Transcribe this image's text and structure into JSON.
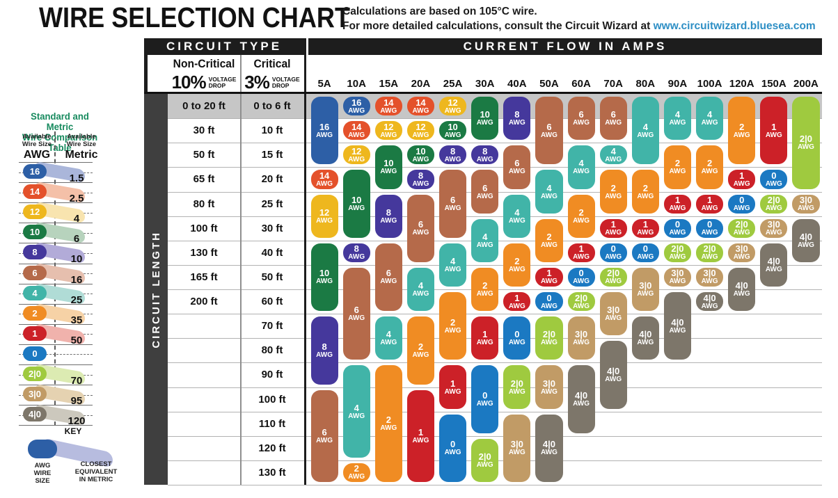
{
  "title": "WIRE SELECTION CHART",
  "subtitle": {
    "line1": "Calculations are based on 105°C wire.",
    "line2_prefix": "For more detailed calculations, consult the Circuit Wizard at ",
    "link": "www.circuitwizard.bluesea.com"
  },
  "sidebar": {
    "title": "Standard and Metric\nWire Comparison Table",
    "left_header_small": "Available\nWire Size",
    "left_header_big": "AWG",
    "right_header_small": "Available\nWire Size",
    "right_header_big": "Metric",
    "rows": [
      {
        "awg": "16",
        "metric": "1.5"
      },
      {
        "awg": "14",
        "metric": "2.5"
      },
      {
        "awg": "12",
        "metric": "4"
      },
      {
        "awg": "10",
        "metric": "6"
      },
      {
        "awg": "8",
        "metric": "10"
      },
      {
        "awg": "6",
        "metric": "16"
      },
      {
        "awg": "4",
        "metric": "25"
      },
      {
        "awg": "2",
        "metric": "35"
      },
      {
        "awg": "1",
        "metric": "50"
      },
      {
        "awg": "0",
        "metric": ""
      },
      {
        "awg": "2|0",
        "metric": "70"
      },
      {
        "awg": "3|0",
        "metric": "95"
      },
      {
        "awg": "4|0",
        "metric": "120"
      }
    ],
    "key": {
      "title": "KEY",
      "left_label": "AWG\nWIRE\nSIZE",
      "right_label": "CLOSEST\nEQUIVALENT\nIN METRIC"
    }
  },
  "table": {
    "circuit_type_header": "CIRCUIT TYPE",
    "current_flow_header": "CURRENT FLOW IN AMPS",
    "circuit_length_label": "CIRCUIT LENGTH",
    "non_critical": {
      "title": "Non-Critical",
      "pct": "10%",
      "sub": "VOLTAGE\nDROP"
    },
    "critical": {
      "title": "Critical",
      "pct": "3%",
      "sub": "VOLTAGE\nDROP"
    },
    "awg_suffix": "AWG"
  },
  "wire_colors": {
    "16": "#2d5fa6",
    "14": "#e4512b",
    "12": "#eeb71e",
    "10": "#1b7a44",
    "8": "#45389c",
    "6": "#b56a4a",
    "4": "#41b4a8",
    "2": "#f08c23",
    "1": "#cc2128",
    "0": "#1b79c2",
    "2|0": "#9fca3f",
    "3|0": "#c19b66",
    "4|0": "#7d766a"
  },
  "wire_colors_light": {
    "16": "#aab6da",
    "14": "#f4c0a8",
    "12": "#f8e4af",
    "10": "#b7d3bd",
    "8": "#b2abd8",
    "6": "#e6bfae",
    "4": "#b0dcd6",
    "2": "#f6d2a6",
    "1": "#f0b2ac",
    "0": "#a9cbe8",
    "2|0": "#dcebb2",
    "3|0": "#e5d2b1",
    "4|0": "#ccc8bd"
  },
  "key_band_color": "#b7bcdf",
  "chart_data": {
    "type": "table",
    "title": "WIRE SELECTION CHART",
    "x_axis_label": "CURRENT FLOW IN AMPS",
    "y_axis_label": "CIRCUIT LENGTH",
    "amp_columns": [
      "5A",
      "10A",
      "15A",
      "20A",
      "25A",
      "30A",
      "40A",
      "50A",
      "60A",
      "70A",
      "80A",
      "90A",
      "100A",
      "120A",
      "150A",
      "200A"
    ],
    "non_critical_lengths": [
      "0 to 20 ft",
      "30 ft",
      "50 ft",
      "65 ft",
      "80 ft",
      "100 ft",
      "130 ft",
      "165 ft",
      "200 ft"
    ],
    "critical_lengths": [
      "0 to 6 ft",
      "10 ft",
      "15 ft",
      "20 ft",
      "25 ft",
      "30 ft",
      "40 ft",
      "50 ft",
      "60 ft",
      "70 ft",
      "80 ft",
      "90 ft",
      "100 ft",
      "110 ft",
      "120 ft",
      "130 ft"
    ],
    "pills": [
      {
        "amp": "5A",
        "segments": [
          {
            "awg": "16",
            "from": 1,
            "to": 3
          },
          {
            "awg": "14",
            "from": 4,
            "to": 4
          },
          {
            "awg": "12",
            "from": 5,
            "to": 6
          },
          {
            "awg": "10",
            "from": 7,
            "to": 9
          },
          {
            "awg": "8",
            "from": 10,
            "to": 12
          },
          {
            "awg": "6",
            "from": 13,
            "to": 16
          }
        ]
      },
      {
        "amp": "10A",
        "segments": [
          {
            "awg": "16",
            "from": 1,
            "to": 1
          },
          {
            "awg": "14",
            "from": 2,
            "to": 2
          },
          {
            "awg": "12",
            "from": 3,
            "to": 3
          },
          {
            "awg": "10",
            "from": 4,
            "to": 6
          },
          {
            "awg": "8",
            "from": 7,
            "to": 7
          },
          {
            "awg": "6",
            "from": 8,
            "to": 11
          },
          {
            "awg": "4",
            "from": 12,
            "to": 15
          },
          {
            "awg": "2",
            "from": 16,
            "to": 16
          }
        ]
      },
      {
        "amp": "15A",
        "segments": [
          {
            "awg": "14",
            "from": 1,
            "to": 1
          },
          {
            "awg": "12",
            "from": 2,
            "to": 2
          },
          {
            "awg": "10",
            "from": 3,
            "to": 4
          },
          {
            "awg": "8",
            "from": 5,
            "to": 6
          },
          {
            "awg": "6",
            "from": 7,
            "to": 9
          },
          {
            "awg": "4",
            "from": 10,
            "to": 11
          },
          {
            "awg": "2",
            "from": 12,
            "to": 16
          }
        ]
      },
      {
        "amp": "20A",
        "segments": [
          {
            "awg": "14",
            "from": 1,
            "to": 1
          },
          {
            "awg": "12",
            "from": 2,
            "to": 2
          },
          {
            "awg": "10",
            "from": 3,
            "to": 3
          },
          {
            "awg": "8",
            "from": 4,
            "to": 4
          },
          {
            "awg": "6",
            "from": 5,
            "to": 7
          },
          {
            "awg": "4",
            "from": 8,
            "to": 9
          },
          {
            "awg": "2",
            "from": 10,
            "to": 12
          },
          {
            "awg": "1",
            "from": 13,
            "to": 16
          }
        ]
      },
      {
        "amp": "25A",
        "segments": [
          {
            "awg": "12",
            "from": 1,
            "to": 1
          },
          {
            "awg": "10",
            "from": 2,
            "to": 2
          },
          {
            "awg": "8",
            "from": 3,
            "to": 3
          },
          {
            "awg": "6",
            "from": 4,
            "to": 6
          },
          {
            "awg": "4",
            "from": 7,
            "to": 8
          },
          {
            "awg": "2",
            "from": 9,
            "to": 11
          },
          {
            "awg": "1",
            "from": 12,
            "to": 13
          },
          {
            "awg": "0",
            "from": 14,
            "to": 16
          }
        ]
      },
      {
        "amp": "30A",
        "segments": [
          {
            "awg": "10",
            "from": 1,
            "to": 2
          },
          {
            "awg": "8",
            "from": 3,
            "to": 3
          },
          {
            "awg": "6",
            "from": 4,
            "to": 5
          },
          {
            "awg": "4",
            "from": 6,
            "to": 7
          },
          {
            "awg": "2",
            "from": 8,
            "to": 9
          },
          {
            "awg": "1",
            "from": 10,
            "to": 11
          },
          {
            "awg": "0",
            "from": 12,
            "to": 14
          },
          {
            "awg": "2|0",
            "from": 15,
            "to": 16
          }
        ]
      },
      {
        "amp": "40A",
        "segments": [
          {
            "awg": "8",
            "from": 1,
            "to": 2
          },
          {
            "awg": "6",
            "from": 3,
            "to": 4
          },
          {
            "awg": "4",
            "from": 5,
            "to": 6
          },
          {
            "awg": "2",
            "from": 7,
            "to": 8
          },
          {
            "awg": "1",
            "from": 9,
            "to": 9
          },
          {
            "awg": "0",
            "from": 10,
            "to": 11
          },
          {
            "awg": "2|0",
            "from": 12,
            "to": 13
          },
          {
            "awg": "3|0",
            "from": 14,
            "to": 16
          }
        ]
      },
      {
        "amp": "50A",
        "segments": [
          {
            "awg": "6",
            "from": 1,
            "to": 3
          },
          {
            "awg": "4",
            "from": 4,
            "to": 5
          },
          {
            "awg": "2",
            "from": 6,
            "to": 7
          },
          {
            "awg": "1",
            "from": 8,
            "to": 8
          },
          {
            "awg": "0",
            "from": 9,
            "to": 9
          },
          {
            "awg": "2|0",
            "from": 10,
            "to": 11
          },
          {
            "awg": "3|0",
            "from": 12,
            "to": 13
          },
          {
            "awg": "4|0",
            "from": 14,
            "to": 16
          }
        ]
      },
      {
        "amp": "60A",
        "segments": [
          {
            "awg": "6",
            "from": 1,
            "to": 2
          },
          {
            "awg": "4",
            "from": 3,
            "to": 4
          },
          {
            "awg": "2",
            "from": 5,
            "to": 6
          },
          {
            "awg": "1",
            "from": 7,
            "to": 7
          },
          {
            "awg": "0",
            "from": 8,
            "to": 8
          },
          {
            "awg": "2|0",
            "from": 9,
            "to": 9
          },
          {
            "awg": "3|0",
            "from": 10,
            "to": 11
          },
          {
            "awg": "4|0",
            "from": 12,
            "to": 14
          }
        ]
      },
      {
        "amp": "70A",
        "segments": [
          {
            "awg": "6",
            "from": 1,
            "to": 2
          },
          {
            "awg": "4",
            "from": 3,
            "to": 3
          },
          {
            "awg": "2",
            "from": 4,
            "to": 5
          },
          {
            "awg": "1",
            "from": 6,
            "to": 6
          },
          {
            "awg": "0",
            "from": 7,
            "to": 7
          },
          {
            "awg": "2|0",
            "from": 8,
            "to": 8
          },
          {
            "awg": "3|0",
            "from": 9,
            "to": 10
          },
          {
            "awg": "4|0",
            "from": 11,
            "to": 13
          }
        ]
      },
      {
        "amp": "80A",
        "segments": [
          {
            "awg": "4",
            "from": 1,
            "to": 3
          },
          {
            "awg": "2",
            "from": 4,
            "to": 5
          },
          {
            "awg": "1",
            "from": 6,
            "to": 6
          },
          {
            "awg": "0",
            "from": 7,
            "to": 7
          },
          {
            "awg": "3|0",
            "from": 8,
            "to": 9
          },
          {
            "awg": "4|0",
            "from": 10,
            "to": 11
          }
        ]
      },
      {
        "amp": "90A",
        "segments": [
          {
            "awg": "4",
            "from": 1,
            "to": 2
          },
          {
            "awg": "2",
            "from": 3,
            "to": 4
          },
          {
            "awg": "1",
            "from": 5,
            "to": 5
          },
          {
            "awg": "0",
            "from": 6,
            "to": 6
          },
          {
            "awg": "2|0",
            "from": 7,
            "to": 7
          },
          {
            "awg": "3|0",
            "from": 8,
            "to": 8
          },
          {
            "awg": "4|0",
            "from": 9,
            "to": 11
          }
        ]
      },
      {
        "amp": "100A",
        "segments": [
          {
            "awg": "4",
            "from": 1,
            "to": 2
          },
          {
            "awg": "2",
            "from": 3,
            "to": 4
          },
          {
            "awg": "1",
            "from": 5,
            "to": 5
          },
          {
            "awg": "0",
            "from": 6,
            "to": 6
          },
          {
            "awg": "2|0",
            "from": 7,
            "to": 7
          },
          {
            "awg": "3|0",
            "from": 8,
            "to": 8
          },
          {
            "awg": "4|0",
            "from": 9,
            "to": 9
          }
        ]
      },
      {
        "amp": "120A",
        "segments": [
          {
            "awg": "2",
            "from": 1,
            "to": 3
          },
          {
            "awg": "1",
            "from": 4,
            "to": 4
          },
          {
            "awg": "0",
            "from": 5,
            "to": 5
          },
          {
            "awg": "2|0",
            "from": 6,
            "to": 6
          },
          {
            "awg": "3|0",
            "from": 7,
            "to": 7
          },
          {
            "awg": "4|0",
            "from": 8,
            "to": 9
          }
        ]
      },
      {
        "amp": "150A",
        "segments": [
          {
            "awg": "1",
            "from": 1,
            "to": 3
          },
          {
            "awg": "0",
            "from": 4,
            "to": 4
          },
          {
            "awg": "2|0",
            "from": 5,
            "to": 5
          },
          {
            "awg": "3|0",
            "from": 6,
            "to": 6
          },
          {
            "awg": "4|0",
            "from": 7,
            "to": 8
          }
        ]
      },
      {
        "amp": "200A",
        "segments": [
          {
            "awg": "2|0",
            "from": 1,
            "to": 4
          },
          {
            "awg": "3|0",
            "from": 5,
            "to": 5
          },
          {
            "awg": "4|0",
            "from": 6,
            "to": 7
          }
        ]
      }
    ]
  }
}
